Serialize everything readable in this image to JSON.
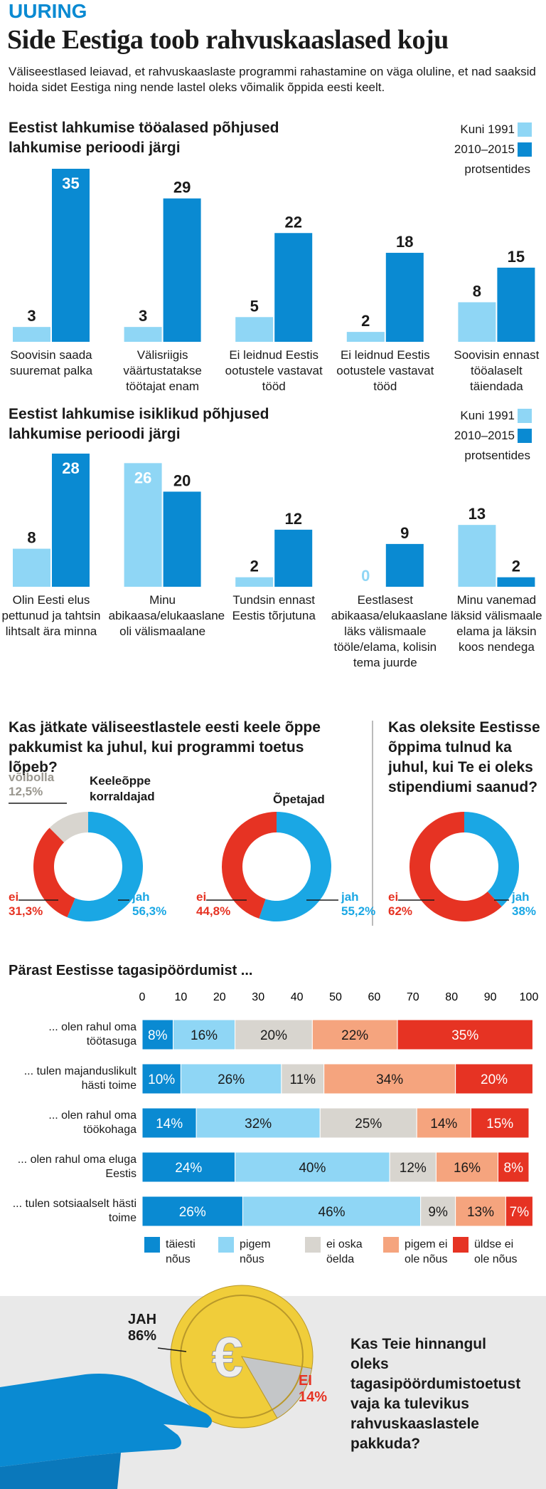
{
  "header": {
    "kicker": "UURING",
    "title": "Side Eestiga toob rahvuskaaslased koju",
    "subtitle": "Väliseestlased leiavad, et rahvuskaaslaste programmi rahastamine on väga oluline, et nad saaksid hoida sidet Eestiga ning nende lastel oleks võimalik õppida eesti keelt."
  },
  "chart_data": [
    {
      "type": "bar",
      "title": "Eestist lahkumise tööalased põhjused lahkumise perioodi järgi",
      "note": "protsentides",
      "categories": [
        "Soovisin saada suuremat palka",
        "Välisriigis väärtustatakse töötajat enam",
        "Ei leidnud Eestis ootustele vastavat tööd",
        "Ei leidnud Eestis ootustele vastavat tööd",
        "Soovisin ennast tööalaselt täiendada"
      ],
      "series": [
        {
          "name": "Kuni 1991",
          "color": "#8fd6f5",
          "values": [
            3,
            3,
            5,
            2,
            8
          ]
        },
        {
          "name": "2010–2015",
          "color": "#0a8ad2",
          "values": [
            35,
            29,
            22,
            18,
            15
          ]
        }
      ]
    },
    {
      "type": "bar",
      "title": "Eestist lahkumise isiklikud põhjused lahkumise perioodi järgi",
      "note": "protsentides",
      "categories": [
        "Olin Eesti elus pettunud ja tahtsin lihtsalt ära minna",
        "Minu abikaasa/elukaaslane oli välismaalane",
        "Tundsin ennast Eestis tõrjutuna",
        "Eestlasest abikaasa/elukaaslane läks välismaale tööle/elama, kolisin tema juurde",
        "Minu vanemad läksid välismaale elama ja läksin koos nendega"
      ],
      "series": [
        {
          "name": "Kuni 1991",
          "color": "#8fd6f5",
          "values": [
            8,
            26,
            2,
            0,
            13
          ]
        },
        {
          "name": "2010–2015",
          "color": "#0a8ad2",
          "values": [
            28,
            20,
            12,
            9,
            2
          ]
        }
      ]
    },
    {
      "type": "pie",
      "donut": true,
      "title": "Kas jätkate väliseestlastele eesti keele õppe pakkumist ka juhul, kui programmi toetus lõpeb?",
      "subtitle": "Keeleõppe korraldajad",
      "categories": [
        "jah",
        "ei",
        "võibolla"
      ],
      "values": [
        56.3,
        31.3,
        12.5
      ],
      "value_labels": [
        "56,3%",
        "31,3%",
        "12,5%"
      ],
      "colors": [
        "#1aa7e4",
        "#e63323",
        "#d8d5cf"
      ]
    },
    {
      "type": "pie",
      "donut": true,
      "subtitle": "Õpetajad",
      "categories": [
        "jah",
        "ei"
      ],
      "values": [
        55.2,
        44.8
      ],
      "value_labels": [
        "55,2%",
        "44,8%"
      ],
      "colors": [
        "#1aa7e4",
        "#e63323"
      ]
    },
    {
      "type": "pie",
      "donut": true,
      "title": "Kas oleksite Eestisse õppima tulnud ka juhul, kui Te ei oleks stipendiumi saanud?",
      "categories": [
        "jah",
        "ei"
      ],
      "values": [
        38,
        62
      ],
      "value_labels": [
        "38%",
        "62%"
      ],
      "colors": [
        "#1aa7e4",
        "#e63323"
      ]
    },
    {
      "type": "bar",
      "orientation": "horizontal",
      "stacked": true,
      "title": "Pärast Eestisse tagasipöördumist ...",
      "categories": [
        "... olen rahul oma töötasuga",
        "... tulen majanduslikult hästi toime",
        "... olen rahul oma töökohaga",
        "... olen rahul oma eluga Eestis",
        "... tulen sotsiaalselt hästi toime"
      ],
      "xlim": [
        0,
        100
      ],
      "xticks": [
        0,
        10,
        20,
        30,
        40,
        50,
        60,
        70,
        80,
        90,
        100
      ],
      "series": [
        {
          "name": "täiesti nõus",
          "color": "#0a8ad2",
          "values": [
            8,
            10,
            14,
            24,
            26
          ],
          "value_labels": [
            "8%",
            "10%",
            "14%",
            "24%",
            "26%"
          ]
        },
        {
          "name": "pigem nõus",
          "color": "#8fd6f5",
          "values": [
            16,
            26,
            32,
            40,
            46
          ],
          "value_labels": [
            "16%",
            "26%",
            "32%",
            "40%",
            "46%"
          ]
        },
        {
          "name": "ei oska öelda",
          "color": "#d8d5cf",
          "values": [
            20,
            11,
            25,
            12,
            9
          ],
          "value_labels": [
            "20%",
            "11%",
            "25%",
            "12%",
            "9%"
          ]
        },
        {
          "name": "pigem ei ole nõus",
          "color": "#f5a47e",
          "values": [
            22,
            34,
            14,
            16,
            13
          ],
          "value_labels": [
            "22%",
            "34%",
            "14%",
            "16%",
            "13%"
          ]
        },
        {
          "name": "üldse ei ole nõus",
          "color": "#e63323",
          "values": [
            35,
            20,
            15,
            8,
            7
          ],
          "value_labels": [
            "35%",
            "20%",
            "15%",
            "8%",
            "7%"
          ]
        }
      ]
    },
    {
      "type": "pie",
      "title": "Kas Teie hinnangul oleks tagasipöördumistoetust vaja ka tulevikus rahvuskaaslastele pakkuda?",
      "categories": [
        "JAH",
        "EI"
      ],
      "values": [
        86,
        14
      ],
      "value_labels": [
        "86%",
        "14%"
      ],
      "colors": [
        "#f0cd3a",
        "#c4c6c8"
      ]
    }
  ]
}
